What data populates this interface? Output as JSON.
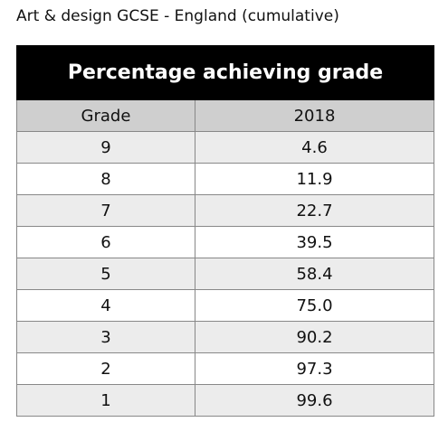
{
  "title": "Art & design GCSE - England (cumulative)",
  "table": {
    "caption": "Percentage achieving grade",
    "columns": [
      "Grade",
      "2018"
    ],
    "rows": [
      [
        "9",
        "4.6"
      ],
      [
        "8",
        "11.9"
      ],
      [
        "7",
        "22.7"
      ],
      [
        "6",
        "39.5"
      ],
      [
        "5",
        "58.4"
      ],
      [
        "4",
        "75.0"
      ],
      [
        "3",
        "90.2"
      ],
      [
        "2",
        "97.3"
      ],
      [
        "1",
        "99.6"
      ]
    ]
  }
}
